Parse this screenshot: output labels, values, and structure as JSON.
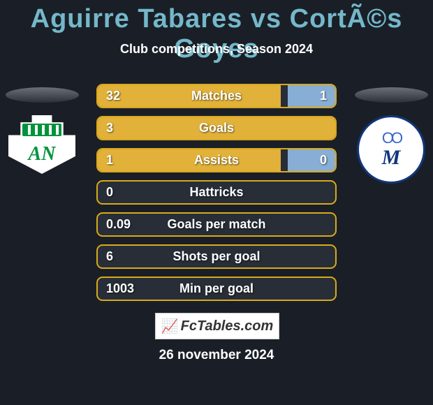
{
  "colors": {
    "background": "#1a1f27",
    "title": "#74b8c9",
    "text": "#ffffff",
    "bar_border": "#daa91c",
    "bar_bg": "#272e38",
    "fill_left": "#e1b13a",
    "fill_right": "#88aed6"
  },
  "fontsize": {
    "title": 38,
    "subtitle": 18,
    "bar": 18,
    "date": 19
  },
  "header": {
    "title": "Aguirre Tabares vs CortÃ©s Goyes",
    "subtitle": "Club competitions, Season 2024"
  },
  "crests": {
    "left": {
      "label": "AN",
      "wall_color": "#00933c"
    },
    "right": {
      "rings": "OO",
      "m": "M",
      "ring_color": "#11357c"
    }
  },
  "bars": [
    {
      "left": "32",
      "label": "Matches",
      "right": "1",
      "fillLeftPct": 77,
      "fillRightPct": 20
    },
    {
      "left": "3",
      "label": "Goals",
      "right": "",
      "fillLeftPct": 100,
      "fillRightPct": 0
    },
    {
      "left": "1",
      "label": "Assists",
      "right": "0",
      "fillLeftPct": 77,
      "fillRightPct": 20
    },
    {
      "left": "0",
      "label": "Hattricks",
      "right": "",
      "fillLeftPct": 0,
      "fillRightPct": 0
    },
    {
      "left": "0.09",
      "label": "Goals per match",
      "right": "",
      "fillLeftPct": 0,
      "fillRightPct": 0
    },
    {
      "left": "6",
      "label": "Shots per goal",
      "right": "",
      "fillLeftPct": 0,
      "fillRightPct": 0
    },
    {
      "left": "1003",
      "label": "Min per goal",
      "right": "",
      "fillLeftPct": 0,
      "fillRightPct": 0
    }
  ],
  "footer": {
    "brand": "FcTables.com",
    "date": "26 november 2024"
  }
}
